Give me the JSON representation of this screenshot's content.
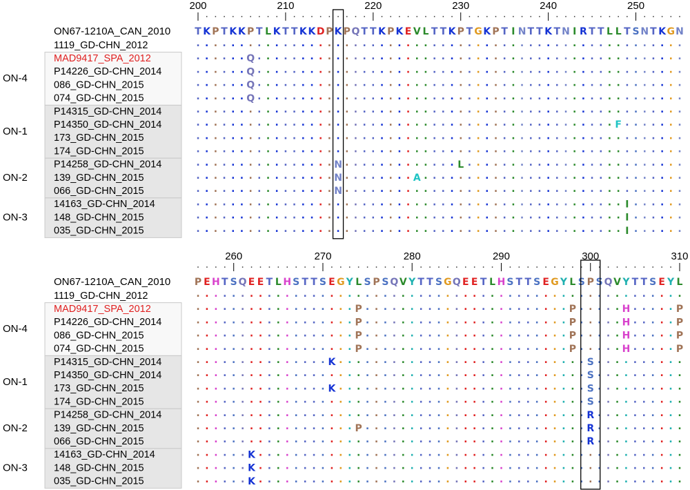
{
  "residue_colors": {
    "T": "#5565c4",
    "K": "#1533d4",
    "P": "#a07356",
    "L": "#2b8a2b",
    "D": "#e02222",
    "E": "#e02222",
    "Q": "#7575b8",
    "V": "#2b8a2b",
    "G": "#e09a20",
    "I": "#2b8a2b",
    "N": "#7383c8",
    "R": "#1533d4",
    "S": "#4c72c2",
    "H": "#d842cc",
    "Y": "#1fb0b0",
    "F": "#1fc4c4",
    "A": "#1fc4c4"
  },
  "panels": [
    {
      "ruler": {
        "ticks": [
          200,
          210,
          220,
          230,
          240,
          250
        ]
      },
      "reference": {
        "name": "ON67-1210A_CAN_2010",
        "sequence": "TKPTKKPTLKTTKKDPKPQTTKPKEVLTTKPTGKPTINTTKTNIRTTLLTSNTKGN"
      },
      "rows": [
        {
          "name": "1119_GD-CHN_2012",
          "sequence": "........................................................"
        }
      ],
      "groups": [
        {
          "label": "ON-4",
          "fill": "#f8f8f8",
          "rows": [
            {
              "name": "MAD9417_SPA_2012",
              "color": "#e02020",
              "sequence": "......Q................................................."
            },
            {
              "name": "P14226_GD-CHN_2014",
              "sequence": "......Q................................................."
            },
            {
              "name": "086_GD-CHN_2015",
              "sequence": "......Q................................................."
            },
            {
              "name": "074_GD-CHN_2015",
              "sequence": "......Q................................................."
            }
          ]
        },
        {
          "label": "ON-1",
          "fill": "#e6e6e6",
          "rows": [
            {
              "name": "P14315_GD-CHN_2014",
              "sequence": "........................................................"
            },
            {
              "name": "P14350_GD-CHN_2014",
              "sequence": "................................................F......."
            },
            {
              "name": "173_GD-CHN_2015",
              "sequence": "........................................................"
            },
            {
              "name": "174_GD-CHN_2015",
              "sequence": "........................................................"
            }
          ]
        },
        {
          "label": "ON-2",
          "fill": "#e6e6e6",
          "rows": [
            {
              "name": "P14258_GD-CHN_2014",
              "sequence": "................N.............L........................."
            },
            {
              "name": "139_GD-CHN_2015",
              "sequence": "................N........A.............................."
            },
            {
              "name": "066_GD-CHN_2015",
              "sequence": "................N......................................."
            }
          ]
        },
        {
          "label": "ON-3",
          "fill": "#e6e6e6",
          "rows": [
            {
              "name": "14163_GD-CHN_2014",
              "sequence": ".................................................I......"
            },
            {
              "name": "148_GD-CHN_2015",
              "sequence": ".................................................I......"
            },
            {
              "name": "035_GD-CHN_2015",
              "sequence": ".................................................I......"
            }
          ]
        }
      ]
    },
    {
      "ruler": {
        "ticks": [
          260,
          270,
          280,
          290,
          300,
          310
        ]
      },
      "reference": {
        "name": "ON67-1210A_CAN_2010",
        "sequence": "PEHTSQEETLHSTTSEGYLSPSQVYTTSGQEETLHSTTSEGYLSPSQVYTTSEYL"
      },
      "rows": [
        {
          "name": "1119_GD-CHN_2012",
          "sequence": "......................................................."
        }
      ],
      "groups": [
        {
          "label": "ON-4",
          "fill": "#f8f8f8",
          "rows": [
            {
              "name": "MAD9417_SPA_2012",
              "color": "#e02020",
              "sequence": "..................P.......................P.....H.....P"
            },
            {
              "name": "P14226_GD-CHN_2014",
              "sequence": "..................P.......................P.....H.....P"
            },
            {
              "name": "086_GD-CHN_2015",
              "sequence": "..................P.......................P.....H.....P"
            },
            {
              "name": "074_GD-CHN_2015",
              "sequence": "..................P.......................P.....H.....P"
            }
          ]
        },
        {
          "label": "ON-1",
          "fill": "#e6e6e6",
          "rows": [
            {
              "name": "P14315_GD-CHN_2014",
              "sequence": "...............K............................S.........."
            },
            {
              "name": "P14350_GD-CHN_2014",
              "sequence": "............................................S.........."
            },
            {
              "name": "173_GD-CHN_2015",
              "sequence": "...............K............................S.........."
            },
            {
              "name": "174_GD-CHN_2015",
              "sequence": "............................................S.........."
            }
          ]
        },
        {
          "label": "ON-2",
          "fill": "#e6e6e6",
          "rows": [
            {
              "name": "P14258_GD-CHN_2014",
              "sequence": "............................................R.........."
            },
            {
              "name": "139_GD-CHN_2015",
              "sequence": "..................P.........................R.........."
            },
            {
              "name": "066_GD-CHN_2015",
              "sequence": "............................................R.........."
            }
          ]
        },
        {
          "label": "ON-3",
          "fill": "#e6e6e6",
          "rows": [
            {
              "name": "14163_GD-CHN_2014",
              "sequence": "......K................................................"
            },
            {
              "name": "148_GD-CHN_2015",
              "sequence": "......K................................................"
            },
            {
              "name": "035_GD-CHN_2015",
              "sequence": "......K................................................"
            }
          ]
        }
      ]
    }
  ]
}
